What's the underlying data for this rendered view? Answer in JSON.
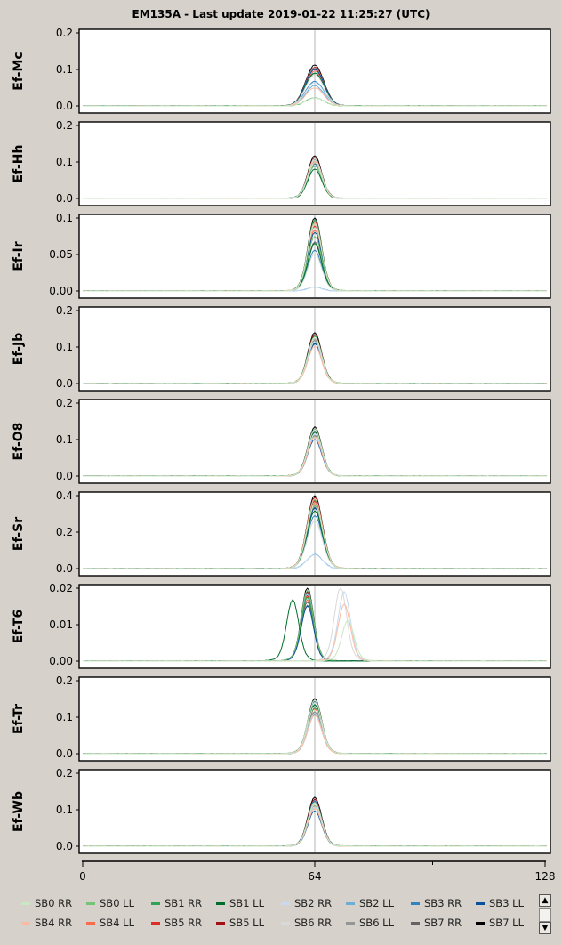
{
  "title": "EM135A - Last update 2019-01-22 11:25:27 (UTC)",
  "chart_data": {
    "type": "line",
    "title": "EM135A - Last update 2019-01-22 11:25:27 (UTC)",
    "xlabel": "",
    "xlim": [
      0,
      128
    ],
    "x_ticks": [
      "0",
      "64",
      "128"
    ],
    "x_minor_ticks": [
      32,
      96
    ],
    "center_marker_x": 64,
    "panels": [
      {
        "name": "Ef-Mc",
        "ylim": [
          0,
          0.2
        ],
        "y_ticks": [
          "0.0",
          "0.1",
          "0.2"
        ],
        "peak_channel": 64,
        "peak_values": [
          0.1,
          0.095,
          0.09,
          0.085,
          0.08,
          0.06,
          0.05,
          0.02
        ],
        "width": 2.4
      },
      {
        "name": "Ef-Hh",
        "ylim": [
          0,
          0.2
        ],
        "y_ticks": [
          "0.0",
          "0.1",
          "0.2"
        ],
        "peak_channel": 64,
        "peak_values": [
          0.105,
          0.1,
          0.095,
          0.09,
          0.085,
          0.08
        ],
        "width": 1.8
      },
      {
        "name": "Ef-Ir",
        "ylim": [
          0,
          0.1
        ],
        "y_ticks": [
          "0.00",
          "0.05",
          "0.1"
        ],
        "peak_channel": 64,
        "peak_values": [
          0.09,
          0.085,
          0.08,
          0.075,
          0.06,
          0.05,
          0.005
        ],
        "width": 1.8
      },
      {
        "name": "Ef-Jb",
        "ylim": [
          0,
          0.2
        ],
        "y_ticks": [
          "0.0",
          "0.1",
          "0.2"
        ],
        "peak_channel": 64,
        "peak_values": [
          0.125,
          0.12,
          0.115,
          0.11,
          0.1
        ],
        "width": 1.8
      },
      {
        "name": "Ef-O8",
        "ylim": [
          0,
          0.2
        ],
        "y_ticks": [
          "0.0",
          "0.1",
          "0.2"
        ],
        "peak_channel": 64,
        "peak_values": [
          0.12,
          0.115,
          0.11,
          0.105,
          0.1
        ],
        "width": 1.8
      },
      {
        "name": "Ef-Sr",
        "ylim": [
          0,
          0.4
        ],
        "y_ticks": [
          "0.0",
          "0.2",
          "0.4"
        ],
        "peak_channel": 64,
        "peak_values": [
          0.36,
          0.35,
          0.33,
          0.32,
          0.3,
          0.26,
          0.07
        ],
        "width": 2.0
      },
      {
        "name": "Ef-T6",
        "ylim": [
          0,
          0.02
        ],
        "y_ticks": [
          "0.00",
          "0.01",
          "0.02"
        ],
        "peak_channel": 62,
        "peak_values": [
          0.018,
          0.017,
          0.016,
          0.015,
          0.0145
        ],
        "width": 1.6,
        "extra_peaks": [
          {
            "x": 58,
            "y": 0.015
          },
          {
            "x": 71,
            "y": 0.018
          },
          {
            "x": 72,
            "y": 0.017
          },
          {
            "x": 72,
            "y": 0.014
          },
          {
            "x": 73,
            "y": 0.01
          }
        ]
      },
      {
        "name": "Ef-Tr",
        "ylim": [
          0,
          0.2
        ],
        "y_ticks": [
          "0.0",
          "0.1",
          "0.2"
        ],
        "peak_channel": 64,
        "peak_values": [
          0.135,
          0.13,
          0.12,
          0.11,
          0.1
        ],
        "width": 1.8
      },
      {
        "name": "Ef-Wb",
        "ylim": [
          0,
          0.2
        ],
        "y_ticks": [
          "0.0",
          "0.1",
          "0.2"
        ],
        "peak_channel": 64,
        "peak_values": [
          0.12,
          0.115,
          0.11,
          0.1,
          0.095
        ],
        "width": 1.8
      }
    ],
    "series": [
      {
        "name": "SB0 RR",
        "color": "#c7e9c0"
      },
      {
        "name": "SB0 LL",
        "color": "#74c476"
      },
      {
        "name": "SB1 RR",
        "color": "#31a354"
      },
      {
        "name": "SB1 LL",
        "color": "#006d2c"
      },
      {
        "name": "SB2 RR",
        "color": "#c6dbef"
      },
      {
        "name": "SB2 LL",
        "color": "#6baed6"
      },
      {
        "name": "SB3 RR",
        "color": "#3182bd"
      },
      {
        "name": "SB3 LL",
        "color": "#08519c"
      },
      {
        "name": "SB4 RR",
        "color": "#fcbba1"
      },
      {
        "name": "SB4 LL",
        "color": "#fb6a4a"
      },
      {
        "name": "SB5 RR",
        "color": "#de2d26"
      },
      {
        "name": "SB5 LL",
        "color": "#a50f15"
      },
      {
        "name": "SB6 RR",
        "color": "#d9d9d9"
      },
      {
        "name": "SB6 LL",
        "color": "#969696"
      },
      {
        "name": "SB7 RR",
        "color": "#636363"
      },
      {
        "name": "SB7 LL",
        "color": "#000000"
      }
    ],
    "legend_position": "bottom"
  },
  "scroll": {
    "up": "▲",
    "down": "▼"
  }
}
